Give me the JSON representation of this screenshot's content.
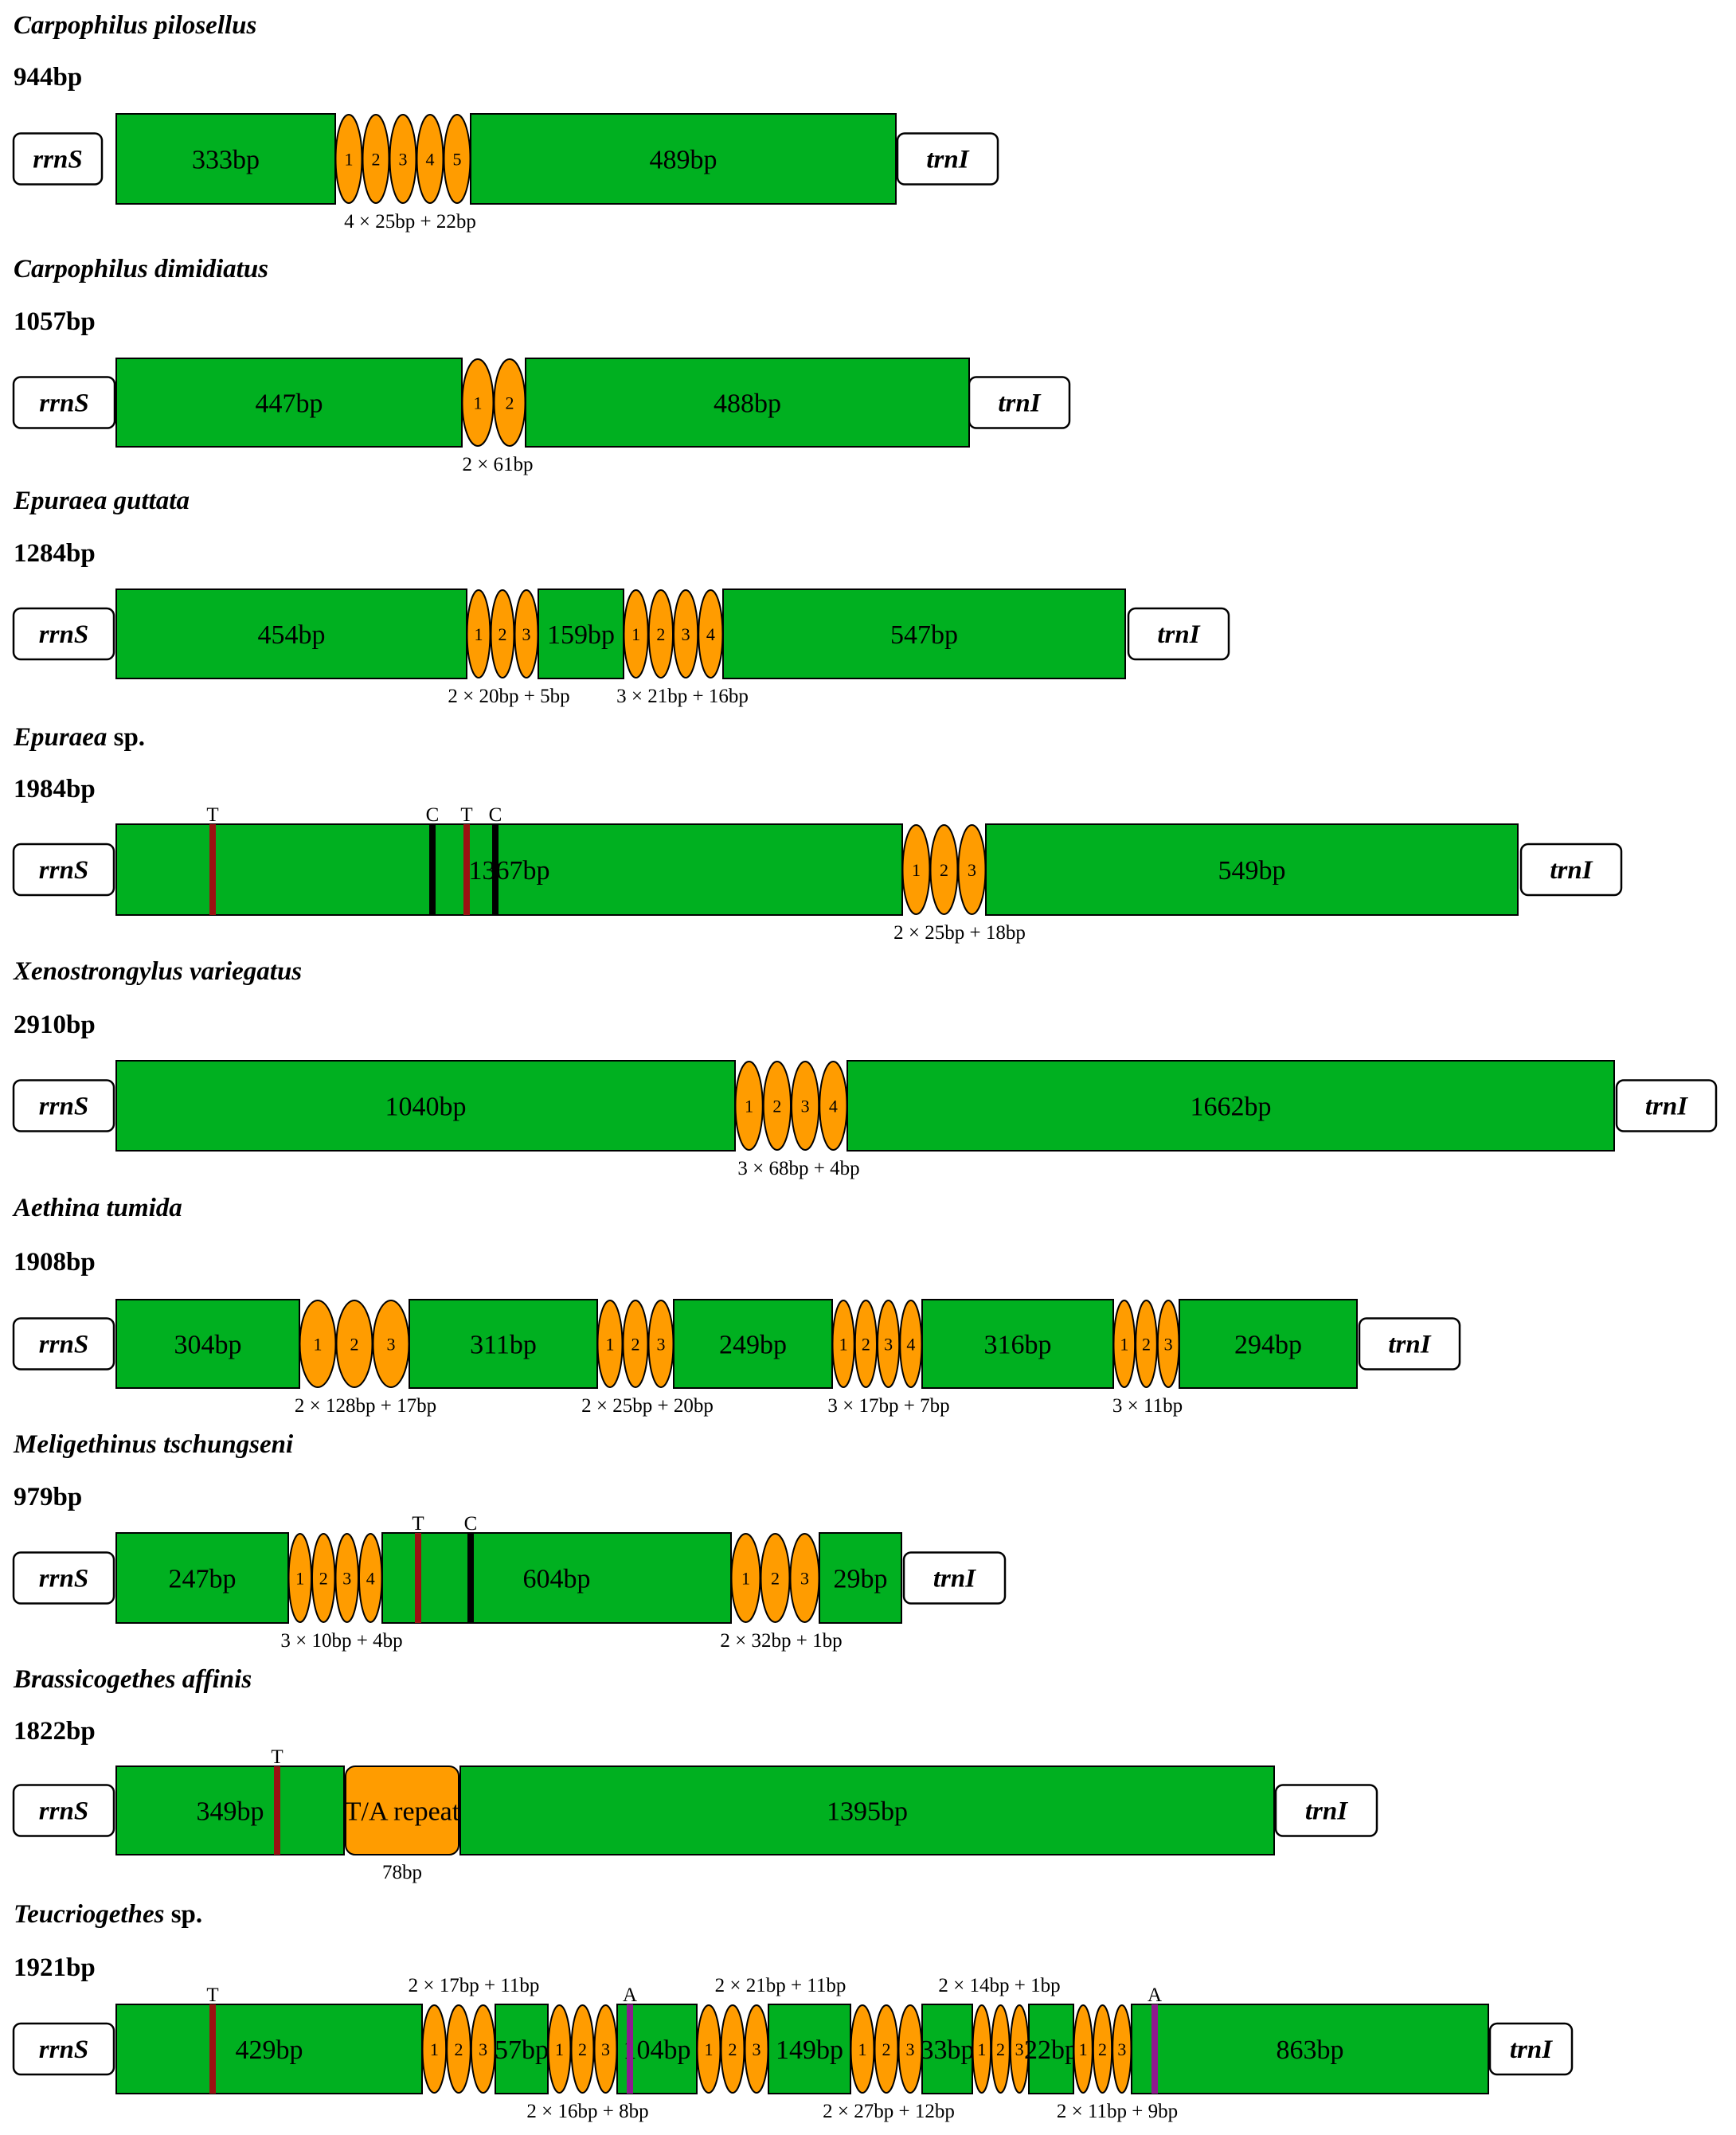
{
  "colors": {
    "segment": "#00b020",
    "repeat": "#ff9c00",
    "marker_T": "#9b1212",
    "marker_C": "#000000",
    "marker_A": "#8e1a8e",
    "outline": "#000000"
  },
  "genes": {
    "left": "rrnS",
    "right": "trnI"
  },
  "rows": [
    {
      "species": "Carpophilus pilosellus",
      "length": "944bp",
      "parts": [
        {
          "type": "seg",
          "label": "333bp"
        },
        {
          "type": "rep",
          "nums": [
            "1",
            "2",
            "3",
            "4",
            "5"
          ]
        },
        {
          "type": "seg",
          "label": "489bp"
        }
      ],
      "notes": [
        "4 × 25bp + 22bp"
      ],
      "markers": []
    },
    {
      "species": "Carpophilus dimidiatus",
      "length": "1057bp",
      "parts": [
        {
          "type": "seg",
          "label": "447bp"
        },
        {
          "type": "rep",
          "nums": [
            "1",
            "2"
          ]
        },
        {
          "type": "seg",
          "label": "488bp"
        }
      ],
      "notes": [
        "2 × 61bp"
      ],
      "markers": []
    },
    {
      "species": "Epuraea guttata",
      "length": "1284bp",
      "parts": [
        {
          "type": "seg",
          "label": "454bp"
        },
        {
          "type": "rep",
          "nums": [
            "1",
            "2",
            "3"
          ]
        },
        {
          "type": "seg",
          "label": "159bp"
        },
        {
          "type": "rep",
          "nums": [
            "1",
            "2",
            "3",
            "4"
          ]
        },
        {
          "type": "seg",
          "label": "547bp"
        }
      ],
      "notes": [
        "2 × 20bp + 5bp",
        "3 × 21bp + 16bp"
      ],
      "markers": []
    },
    {
      "species": "Epuraea",
      "species_suffix": " sp.",
      "length": "1984bp",
      "parts": [
        {
          "type": "seg",
          "label": "1367bp"
        },
        {
          "type": "rep",
          "nums": [
            "1",
            "2",
            "3"
          ]
        },
        {
          "type": "seg",
          "label": "549bp"
        }
      ],
      "notes": [
        "2 × 25bp + 18bp"
      ],
      "markers": [
        "T",
        "C",
        "T",
        "C"
      ]
    },
    {
      "species": "Xenostrongylus variegatus",
      "length": "2910bp",
      "parts": [
        {
          "type": "seg",
          "label": "1040bp"
        },
        {
          "type": "rep",
          "nums": [
            "1",
            "2",
            "3",
            "4"
          ]
        },
        {
          "type": "seg",
          "label": "1662bp"
        }
      ],
      "notes": [
        "3 × 68bp + 4bp"
      ],
      "markers": []
    },
    {
      "species": "Aethina tumida",
      "length": "1908bp",
      "parts": [
        {
          "type": "seg",
          "label": "304bp"
        },
        {
          "type": "rep",
          "nums": [
            "1",
            "2",
            "3"
          ]
        },
        {
          "type": "seg",
          "label": "311bp"
        },
        {
          "type": "rep",
          "nums": [
            "1",
            "2",
            "3"
          ]
        },
        {
          "type": "seg",
          "label": "249bp"
        },
        {
          "type": "rep",
          "nums": [
            "1",
            "2",
            "3",
            "4"
          ]
        },
        {
          "type": "seg",
          "label": "316bp"
        },
        {
          "type": "rep",
          "nums": [
            "1",
            "2",
            "3"
          ]
        },
        {
          "type": "seg",
          "label": "294bp"
        }
      ],
      "notes": [
        "2 × 128bp + 17bp",
        "2 × 25bp + 20bp",
        "3 × 17bp + 7bp",
        "3 × 11bp"
      ],
      "markers": []
    },
    {
      "species": "Meligethinus tschungseni",
      "length": "979bp",
      "parts": [
        {
          "type": "seg",
          "label": "247bp"
        },
        {
          "type": "rep",
          "nums": [
            "1",
            "2",
            "3",
            "4"
          ]
        },
        {
          "type": "seg",
          "label": "604bp"
        },
        {
          "type": "rep",
          "nums": [
            "1",
            "2",
            "3"
          ]
        },
        {
          "type": "seg",
          "label": "29bp"
        }
      ],
      "notes": [
        "3 × 10bp + 4bp",
        "2 × 32bp + 1bp"
      ],
      "markers": [
        "T",
        "C"
      ]
    },
    {
      "species": "Brassicogethes affinis",
      "length": "1822bp",
      "parts": [
        {
          "type": "seg",
          "label": "349bp"
        },
        {
          "type": "box",
          "label": "T/A repeat"
        },
        {
          "type": "seg",
          "label": "1395bp"
        }
      ],
      "notes": [
        "78bp"
      ],
      "markers": [
        "T"
      ]
    },
    {
      "species": "Teucriogethes",
      "species_suffix": " sp.",
      "length": "1921bp",
      "parts": [
        {
          "type": "seg",
          "label": "429bp"
        },
        {
          "type": "rep",
          "nums": [
            "1",
            "2",
            "3"
          ]
        },
        {
          "type": "seg",
          "label": "57bp"
        },
        {
          "type": "rep",
          "nums": [
            "1",
            "2",
            "3"
          ]
        },
        {
          "type": "seg",
          "label": "104bp"
        },
        {
          "type": "rep",
          "nums": [
            "1",
            "2",
            "3"
          ]
        },
        {
          "type": "seg",
          "label": "149bp"
        },
        {
          "type": "rep",
          "nums": [
            "1",
            "2",
            "3"
          ]
        },
        {
          "type": "seg",
          "label": "33bp"
        },
        {
          "type": "rep",
          "nums": [
            "1",
            "2",
            "3"
          ]
        },
        {
          "type": "seg",
          "label": "22bp"
        },
        {
          "type": "rep",
          "nums": [
            "1",
            "2",
            "3"
          ]
        },
        {
          "type": "seg",
          "label": "863bp"
        }
      ],
      "notes": [
        "2 × 17bp + 11bp",
        "2 × 16bp + 8bp",
        "2 × 21bp + 11bp",
        "2 × 27bp + 12bp",
        "2 × 14bp + 1bp",
        "2 × 11bp + 9bp"
      ],
      "markers": [
        "T",
        "A",
        "A"
      ]
    }
  ]
}
